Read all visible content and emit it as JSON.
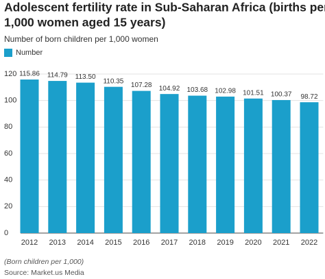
{
  "chart_data": {
    "type": "bar",
    "title_lines": [
      "Adolescent fertility rate in Sub-Saharan Africa (births per",
      "1,000 women aged 15 years)"
    ],
    "subtitle": "Number of born children per 1,000 women",
    "categories": [
      "2012",
      "2013",
      "2014",
      "2015",
      "2016",
      "2017",
      "2018",
      "2019",
      "2020",
      "2021",
      "2022"
    ],
    "series": [
      {
        "name": "Number",
        "color": "#1b9fcb",
        "values": [
          115.86,
          114.79,
          113.5,
          110.35,
          107.28,
          104.92,
          103.68,
          102.98,
          101.51,
          100.37,
          98.72
        ],
        "value_labels": [
          "115.86",
          "114.79",
          "113.50",
          "110.35",
          "107.28",
          "104.92",
          "103.68",
          "102.98",
          "101.51",
          "100.37",
          "98.72"
        ]
      }
    ],
    "ylim": [
      0,
      120
    ],
    "yticks": [
      0,
      20,
      40,
      60,
      80,
      100,
      120
    ],
    "grid": true,
    "notes": [
      "(Born children per 1,000)",
      "Source: Market.us Media"
    ]
  }
}
